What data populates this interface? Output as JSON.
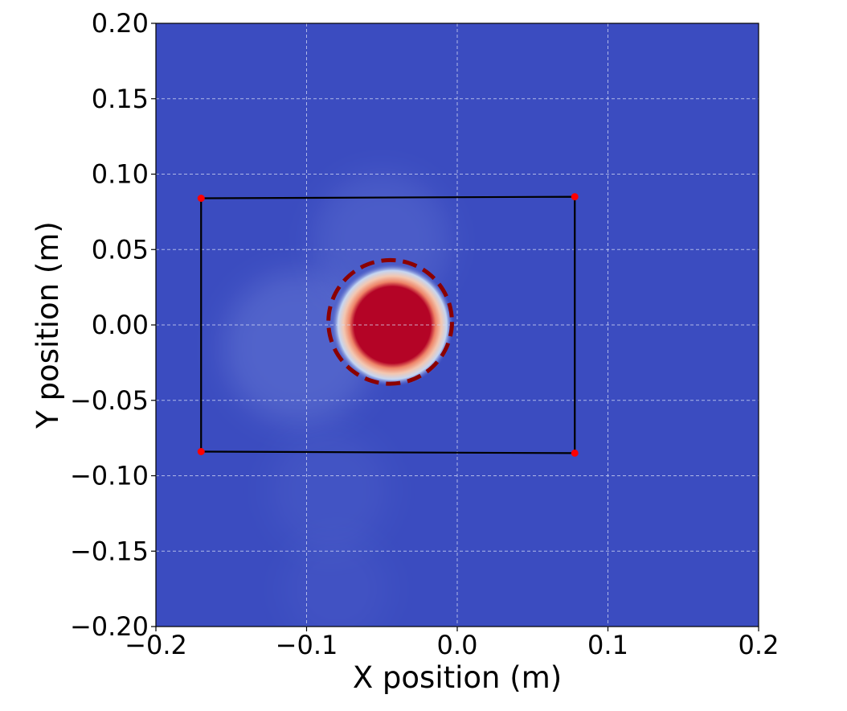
{
  "chart_data": {
    "type": "heatmap",
    "title": "",
    "xlabel": "X position (m)",
    "ylabel": "Y position (m)",
    "xlim": [
      -0.2,
      0.2
    ],
    "ylim": [
      -0.2,
      0.2
    ],
    "x_ticks": [
      -0.2,
      -0.1,
      0.0,
      0.1,
      0.2
    ],
    "x_tick_labels": [
      "−0.2",
      "−0.1",
      "0.0",
      "0.1",
      "0.2"
    ],
    "y_ticks": [
      -0.2,
      -0.15,
      -0.1,
      -0.05,
      0.0,
      0.05,
      0.1,
      0.15,
      0.2
    ],
    "y_tick_labels": [
      "−0.20",
      "−0.15",
      "−0.10",
      "−0.05",
      "0.00",
      "0.05",
      "0.10",
      "0.15",
      "0.20"
    ],
    "grid": true,
    "colormap": "coolwarm",
    "colors": {
      "background_field": "#3b4cc0",
      "hot_core": "#b40426",
      "hot_ring": "#f3c7b1",
      "outline": "#000000",
      "corner_marker": "#ff0000",
      "dashed_circle": "#8b0000",
      "grid": "#d8dcf5"
    },
    "hotspot": {
      "center": [
        -0.043,
        0.0
      ],
      "core_radius": 0.026,
      "glow_radius": 0.041
    },
    "dashed_circle": {
      "center": [
        -0.0445,
        0.002
      ],
      "radius": 0.041
    },
    "faint_blobs": [
      {
        "center": [
          -0.105,
          -0.015
        ],
        "radius": 0.05,
        "intensity": 0.22
      },
      {
        "center": [
          -0.05,
          0.055
        ],
        "radius": 0.045,
        "intensity": 0.15
      },
      {
        "center": [
          -0.085,
          -0.11
        ],
        "radius": 0.04,
        "intensity": 0.07
      },
      {
        "center": [
          -0.08,
          -0.175
        ],
        "radius": 0.035,
        "intensity": 0.06
      }
    ],
    "quadrilateral": [
      [
        -0.17,
        0.084
      ],
      [
        0.078,
        0.085
      ],
      [
        0.078,
        -0.085
      ],
      [
        -0.17,
        -0.084
      ]
    ]
  }
}
